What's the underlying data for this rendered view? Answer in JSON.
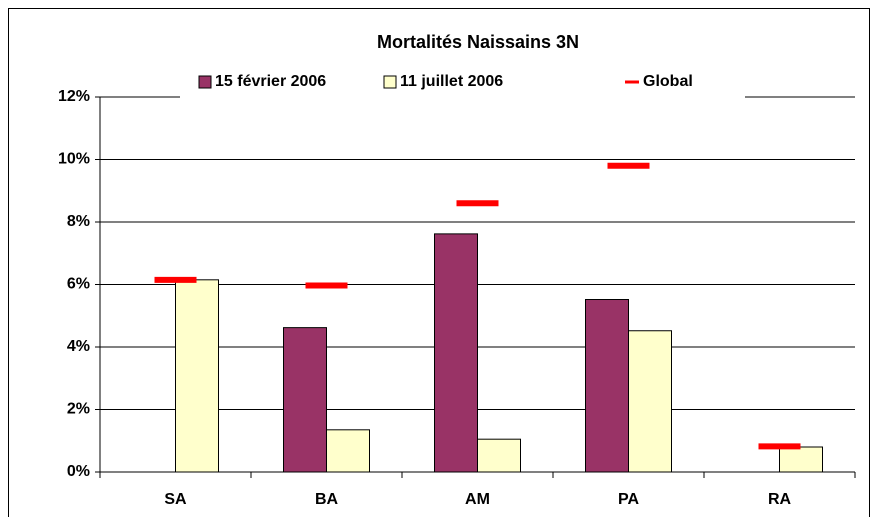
{
  "chart_data": {
    "type": "bar",
    "title": "Mortalités Naissains 3N",
    "categories": [
      "SA",
      "BA",
      "AM",
      "PA",
      "RA"
    ],
    "series": [
      {
        "name": "15 février 2006",
        "color": "#993366",
        "values": [
          null,
          4.62,
          7.62,
          5.52,
          null
        ]
      },
      {
        "name": "11 juillet 2006",
        "color": "#ffffcc",
        "values": [
          6.15,
          1.35,
          1.05,
          4.52,
          0.8
        ]
      },
      {
        "name": "Global",
        "color": "#ff0000",
        "marker": "dash",
        "values": [
          6.15,
          5.97,
          8.6,
          9.8,
          0.82
        ]
      }
    ],
    "ylim": [
      0,
      12
    ],
    "yticks": [
      {
        "value": 0,
        "label": "0%"
      },
      {
        "value": 2,
        "label": "2%"
      },
      {
        "value": 4,
        "label": "4%"
      },
      {
        "value": 6,
        "label": "6%"
      },
      {
        "value": 8,
        "label": "8%"
      },
      {
        "value": 10,
        "label": "10%"
      },
      {
        "value": 12,
        "label": "12%"
      }
    ],
    "grid": true
  }
}
